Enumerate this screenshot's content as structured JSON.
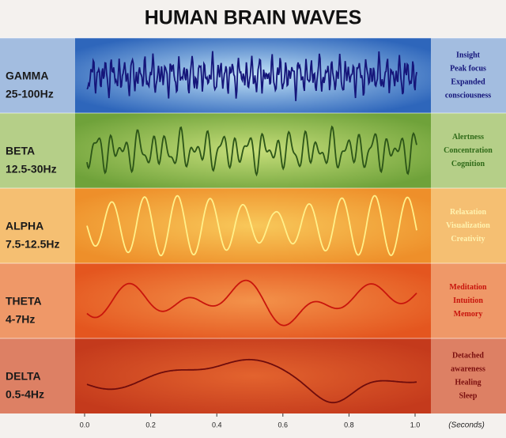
{
  "title": "HUMAN BRAIN WAVES",
  "bands": [
    {
      "name": "GAMMA",
      "range": "25-100Hz",
      "effects": [
        "Insight",
        "Peak focus",
        "Expanded",
        "consciousness"
      ]
    },
    {
      "name": "BETA",
      "range": "12.5-30Hz",
      "effects": [
        "Alertness",
        "Concentration",
        "Cognition"
      ]
    },
    {
      "name": "ALPHA",
      "range": "7.5-12.5Hz",
      "effects": [
        "Relaxation",
        "Visualization",
        "Creativity"
      ]
    },
    {
      "name": "THETA",
      "range": "4-7Hz",
      "effects": [
        "Meditation",
        "Intuition",
        "Memory"
      ]
    },
    {
      "name": "DELTA",
      "range": "0.5-4Hz",
      "effects": [
        "Detached",
        "awareness",
        "Healing",
        "Sleep"
      ]
    }
  ],
  "time_axis": {
    "ticks": [
      "0.0",
      "0.2",
      "0.4",
      "0.6",
      "0.8",
      "1.0"
    ],
    "unit": "(Seconds)"
  }
}
